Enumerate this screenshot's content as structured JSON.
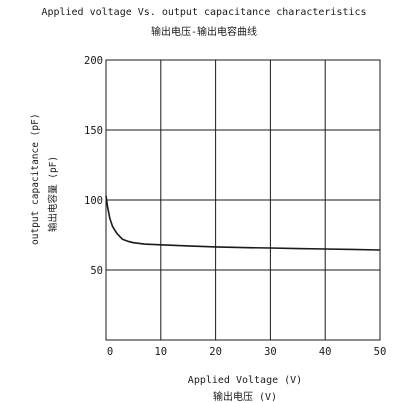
{
  "chart_data": {
    "type": "line",
    "title": "Applied voltage Vs. output capacitance characteristics",
    "subtitle": "输出电压-输出电容曲线",
    "xlabel": "Applied Voltage (V)",
    "xlabel_sub": "输出电压 (V)",
    "ylabel": "output capacitance (pF)",
    "ylabel_sub": "输出电容量 (pF)",
    "xlim": [
      0,
      50
    ],
    "ylim": [
      0,
      200
    ],
    "xticks": [
      0,
      10,
      20,
      30,
      40,
      50
    ],
    "yticks": [
      50,
      100,
      150,
      200
    ],
    "xtick_labels": [
      "0",
      "10",
      "20",
      "30",
      "40",
      "50"
    ],
    "ytick_labels": [
      "50",
      "100",
      "150",
      "200"
    ],
    "grid": true,
    "colors": {
      "line": "#1a1a1a",
      "grid": "#1a1a1a"
    },
    "series": [
      {
        "x": [
          0,
          0.3,
          0.7,
          1.2,
          2,
          3,
          4,
          5,
          7,
          10,
          15,
          20,
          25,
          30,
          35,
          40,
          45,
          50
        ],
        "values": [
          103,
          95,
          87,
          81,
          76,
          72,
          70.5,
          69.5,
          68.5,
          68,
          67.2,
          66.5,
          66,
          65.7,
          65.3,
          65,
          64.7,
          64.3
        ]
      }
    ]
  }
}
